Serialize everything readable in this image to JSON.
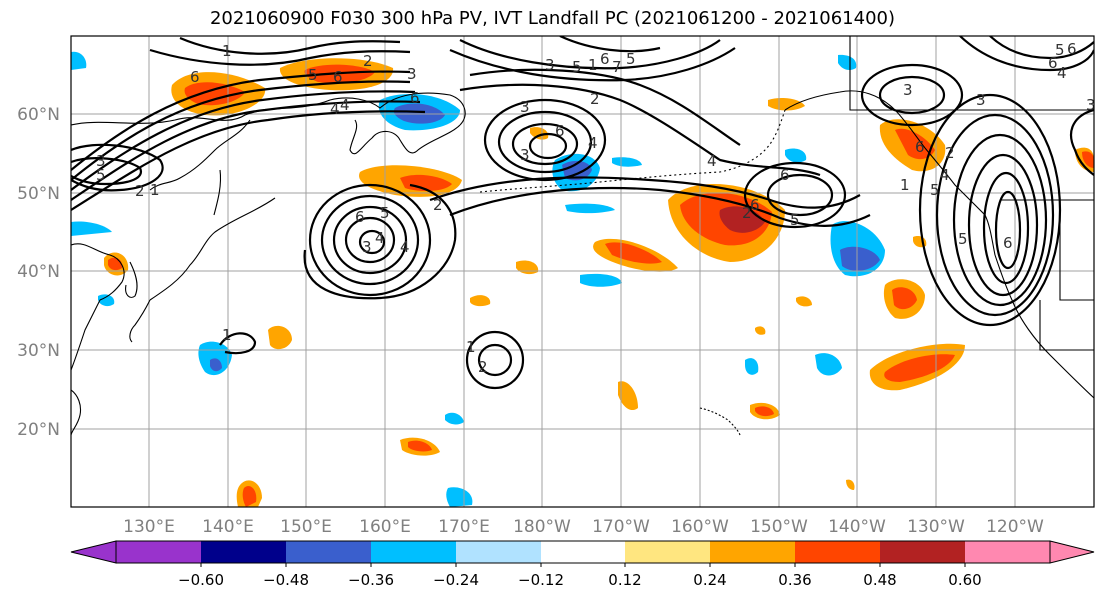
{
  "title": "2021060900 F030 300 hPa PV, IVT Landfall PC (2021061200 - 2021061400)",
  "lat_labels": [
    "60°N",
    "50°N",
    "40°N",
    "30°N",
    "20°N"
  ],
  "lon_labels": [
    "130°E",
    "140°E",
    "150°E",
    "160°E",
    "170°E",
    "180°W",
    "170°W",
    "160°W",
    "150°W",
    "140°W",
    "130°W",
    "120°W"
  ],
  "colorbar": {
    "levels": [
      "−0.60",
      "−0.48",
      "−0.36",
      "−0.24",
      "−0.12",
      "0.12",
      "0.24",
      "0.36",
      "0.48",
      "0.60"
    ],
    "colors": [
      "#9933cc",
      "#00008b",
      "#3a5fcd",
      "#00bfff",
      "#b0e2ff",
      "#ffffff",
      "#ffe680",
      "#ffa500",
      "#ff4500",
      "#b22222",
      "#ff88b0"
    ]
  },
  "contour_labels": [
    "6",
    "5",
    "3",
    "2",
    "1",
    "4",
    "6",
    "5",
    "3",
    "2",
    "4",
    "2",
    "6",
    "4",
    "5",
    "3",
    "3",
    "2",
    "1",
    "6",
    "5",
    "4",
    "3",
    "6",
    "2",
    "6",
    "5",
    "4",
    "6",
    "2",
    "3",
    "5",
    "3",
    "1",
    "3",
    "5",
    "6",
    "4",
    "5",
    "6",
    "1",
    "2",
    "1",
    "7",
    "5",
    "6",
    "6",
    "6",
    "4",
    "3",
    "1",
    "4"
  ],
  "colors": {
    "contour": "#000000",
    "coast": "#000000",
    "grid": "#a0a0a0",
    "frame": "#000000"
  }
}
